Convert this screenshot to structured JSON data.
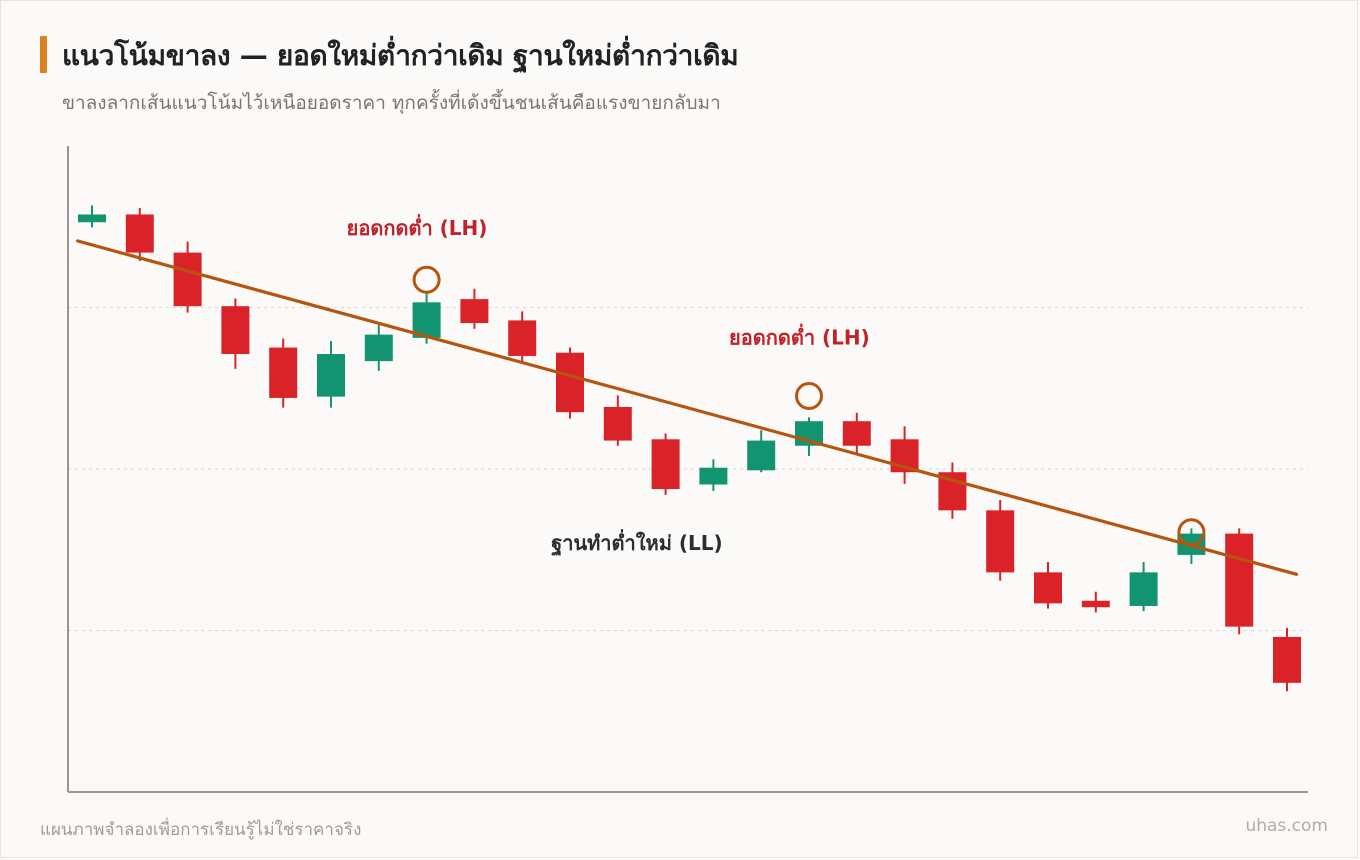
{
  "header": {
    "title": "แนวโน้มขาลง — ยอดใหม่ต่ำกว่าเดิม ฐานใหม่ต่ำกว่าเดิม",
    "subtitle": "ขาลงลากเส้นแนวโน้มไว้เหนือยอดราคา ทุกครั้งที่เด้งขึ้นชนเส้นคือแรงขายกลับมา"
  },
  "footer": {
    "note": "แผนภาพจำลองเพื่อการเรียนรู้ไม่ใช่ราคาจริง",
    "brand": "uhas.com"
  },
  "colors": {
    "up": "#129470",
    "down": "#da2328",
    "trendline": "#b5550f",
    "marker": "#b5550f",
    "lh_label": "#c0232a",
    "ll_label": "#2d2d2d",
    "accent": "#d9821f"
  },
  "chart_data": {
    "type": "candlestick",
    "ylim": [
      0,
      100
    ],
    "grid": {
      "horizontal": [
        25,
        50,
        75
      ],
      "style": "dotted"
    },
    "candles": [
      {
        "o": 88.2,
        "c": 89.4,
        "h": 90.8,
        "l": 87.4
      },
      {
        "o": 89.4,
        "c": 83.5,
        "h": 90.4,
        "l": 82.2
      },
      {
        "o": 83.5,
        "c": 75.2,
        "h": 85.2,
        "l": 74.2
      },
      {
        "o": 75.2,
        "c": 67.8,
        "h": 76.4,
        "l": 65.5
      },
      {
        "o": 68.8,
        "c": 61.0,
        "h": 70.2,
        "l": 59.5
      },
      {
        "o": 61.2,
        "c": 67.8,
        "h": 69.8,
        "l": 59.5
      },
      {
        "o": 66.7,
        "c": 70.8,
        "h": 72.3,
        "l": 65.2
      },
      {
        "o": 70.3,
        "c": 75.8,
        "h": 77.5,
        "l": 69.4
      },
      {
        "o": 76.3,
        "c": 72.6,
        "h": 77.9,
        "l": 71.7
      },
      {
        "o": 73.0,
        "c": 67.5,
        "h": 74.4,
        "l": 66.4
      },
      {
        "o": 68.0,
        "c": 58.8,
        "h": 68.8,
        "l": 57.8
      },
      {
        "o": 59.6,
        "c": 54.4,
        "h": 61.4,
        "l": 53.6
      },
      {
        "o": 54.6,
        "c": 46.9,
        "h": 55.5,
        "l": 46.0
      },
      {
        "o": 47.6,
        "c": 50.2,
        "h": 51.5,
        "l": 46.6
      },
      {
        "o": 49.8,
        "c": 54.4,
        "h": 56.0,
        "l": 49.5
      },
      {
        "o": 53.6,
        "c": 57.4,
        "h": 58.0,
        "l": 52.0
      },
      {
        "o": 57.4,
        "c": 53.6,
        "h": 58.7,
        "l": 52.3
      },
      {
        "o": 54.6,
        "c": 49.5,
        "h": 56.6,
        "l": 47.7
      },
      {
        "o": 49.5,
        "c": 43.6,
        "h": 51.0,
        "l": 42.3
      },
      {
        "o": 43.6,
        "c": 34.0,
        "h": 45.2,
        "l": 32.7
      },
      {
        "o": 34.0,
        "c": 29.2,
        "h": 35.6,
        "l": 28.4
      },
      {
        "o": 29.6,
        "c": 28.6,
        "h": 31.0,
        "l": 27.8
      },
      {
        "o": 28.8,
        "c": 34.0,
        "h": 35.6,
        "l": 28.0
      },
      {
        "o": 36.7,
        "c": 40.0,
        "h": 40.8,
        "l": 35.3
      },
      {
        "o": 40.0,
        "c": 25.6,
        "h": 40.8,
        "l": 24.4
      },
      {
        "o": 24.0,
        "c": 16.9,
        "h": 25.4,
        "l": 15.6
      }
    ],
    "trendline": {
      "from": {
        "index": -0.3,
        "y": 85.3
      },
      "to": {
        "index": 25.2,
        "y": 33.7
      }
    },
    "markers": [
      {
        "index": 7,
        "y": 79.3
      },
      {
        "index": 15,
        "y": 61.3
      },
      {
        "index": 23,
        "y": 40.2
      }
    ],
    "annotations": [
      {
        "text": "ยอดกดต่ำ (LH)",
        "kind": "lh",
        "index": 6.8,
        "y": 86.2
      },
      {
        "text": "ยอดกดต่ำ (LH)",
        "kind": "lh",
        "index": 14.8,
        "y": 69.3
      },
      {
        "text": "ฐานทำต่ำใหม่ (LL)",
        "kind": "ll",
        "index": 11.4,
        "y": 37.5
      }
    ]
  }
}
